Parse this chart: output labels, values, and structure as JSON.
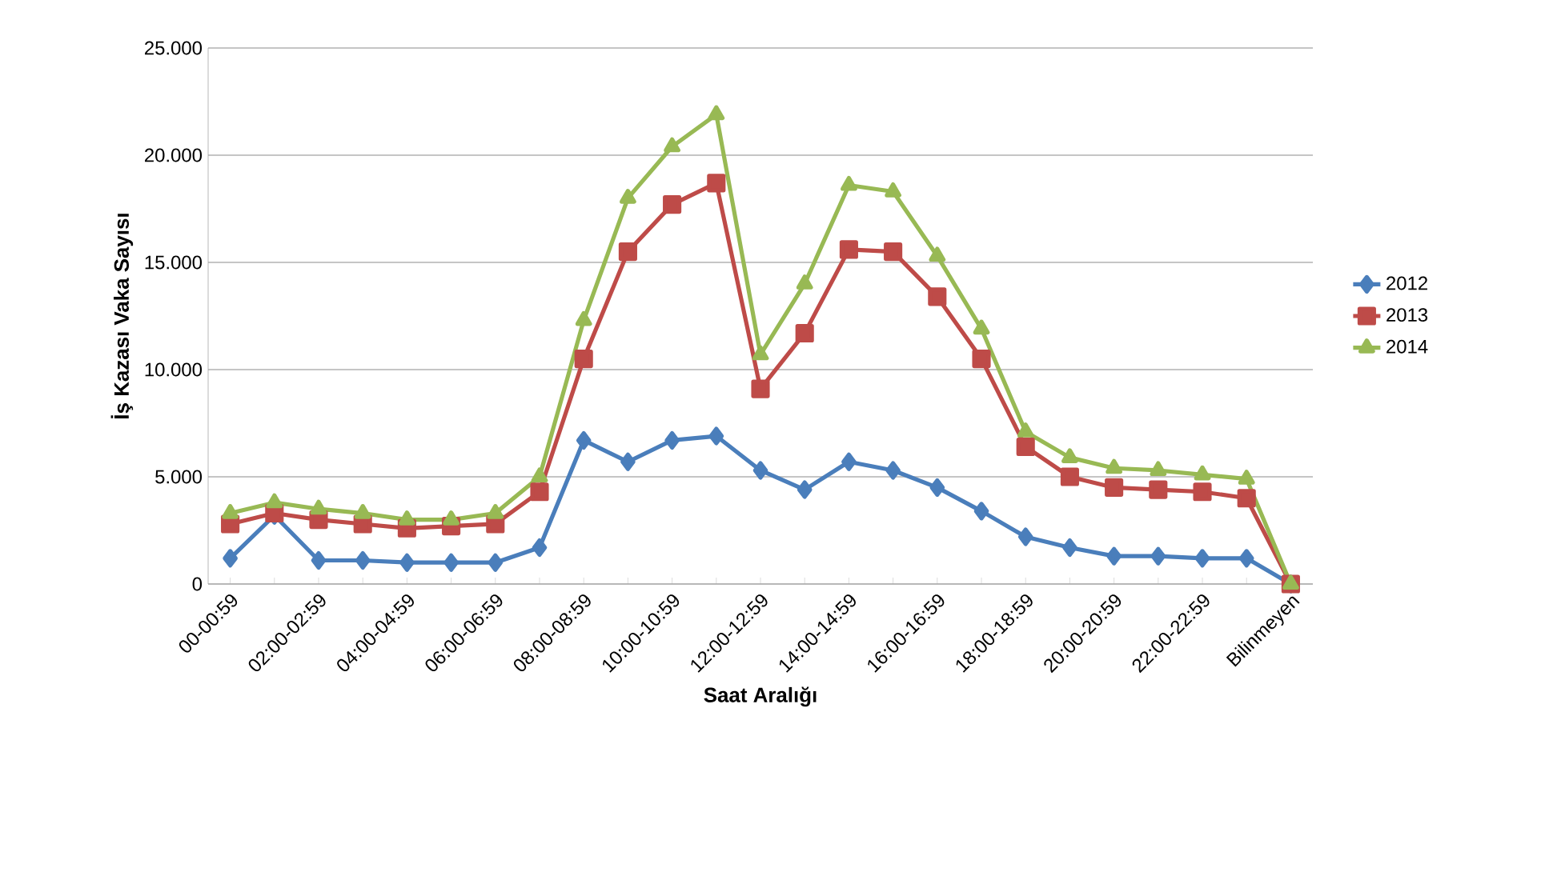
{
  "chart_data": {
    "type": "line",
    "xlabel": "Saat Aralığı",
    "ylabel": "İş Kazası Vaka Sayısı",
    "categories": [
      "00-00:59",
      null,
      "02:00-02:59",
      null,
      "04:00-04:59",
      null,
      "06:00-06:59",
      null,
      "08:00-08:59",
      null,
      "10:00-10:59",
      null,
      "12:00-12:59",
      null,
      "14:00-14:59",
      null,
      "16:00-16:59",
      null,
      "18:00-18:59",
      null,
      "20:00-20:59",
      null,
      "22:00-22:59",
      null,
      "Bilinmeyen"
    ],
    "series": [
      {
        "name": "2012",
        "color": "#4a7ebb",
        "marker": "diamond",
        "values": [
          1200,
          3200,
          1100,
          1100,
          1000,
          1000,
          1000,
          1700,
          6700,
          5700,
          6700,
          6900,
          5300,
          4400,
          5700,
          5300,
          4500,
          3400,
          2200,
          1700,
          1300,
          1300,
          1200,
          1200,
          0
        ]
      },
      {
        "name": "2013",
        "color": "#be4b48",
        "marker": "square",
        "values": [
          2800,
          3300,
          3000,
          2800,
          2600,
          2700,
          2800,
          4300,
          10500,
          15500,
          17700,
          18700,
          9100,
          11700,
          15600,
          15500,
          13400,
          10500,
          6400,
          5000,
          4500,
          4400,
          4300,
          4000,
          0
        ]
      },
      {
        "name": "2014",
        "color": "#98b954",
        "marker": "triangle",
        "values": [
          3300,
          3800,
          3500,
          3300,
          3000,
          3000,
          3300,
          5000,
          12300,
          18000,
          20400,
          21900,
          10700,
          14000,
          18600,
          18300,
          15300,
          11900,
          7100,
          5900,
          5400,
          5300,
          5100,
          4900,
          0
        ]
      }
    ],
    "ylim": [
      0,
      25000
    ],
    "yticks": [
      0,
      {
        "value": 5000,
        "label": "5.000"
      },
      {
        "value": 10000,
        "label": "10.000"
      },
      {
        "value": 15000,
        "label": "15.000"
      },
      {
        "value": 20000,
        "label": "20.000"
      },
      {
        "value": 25000,
        "label": "25.000"
      }
    ],
    "grid": "y",
    "legend": "right",
    "line_style": "solid"
  }
}
